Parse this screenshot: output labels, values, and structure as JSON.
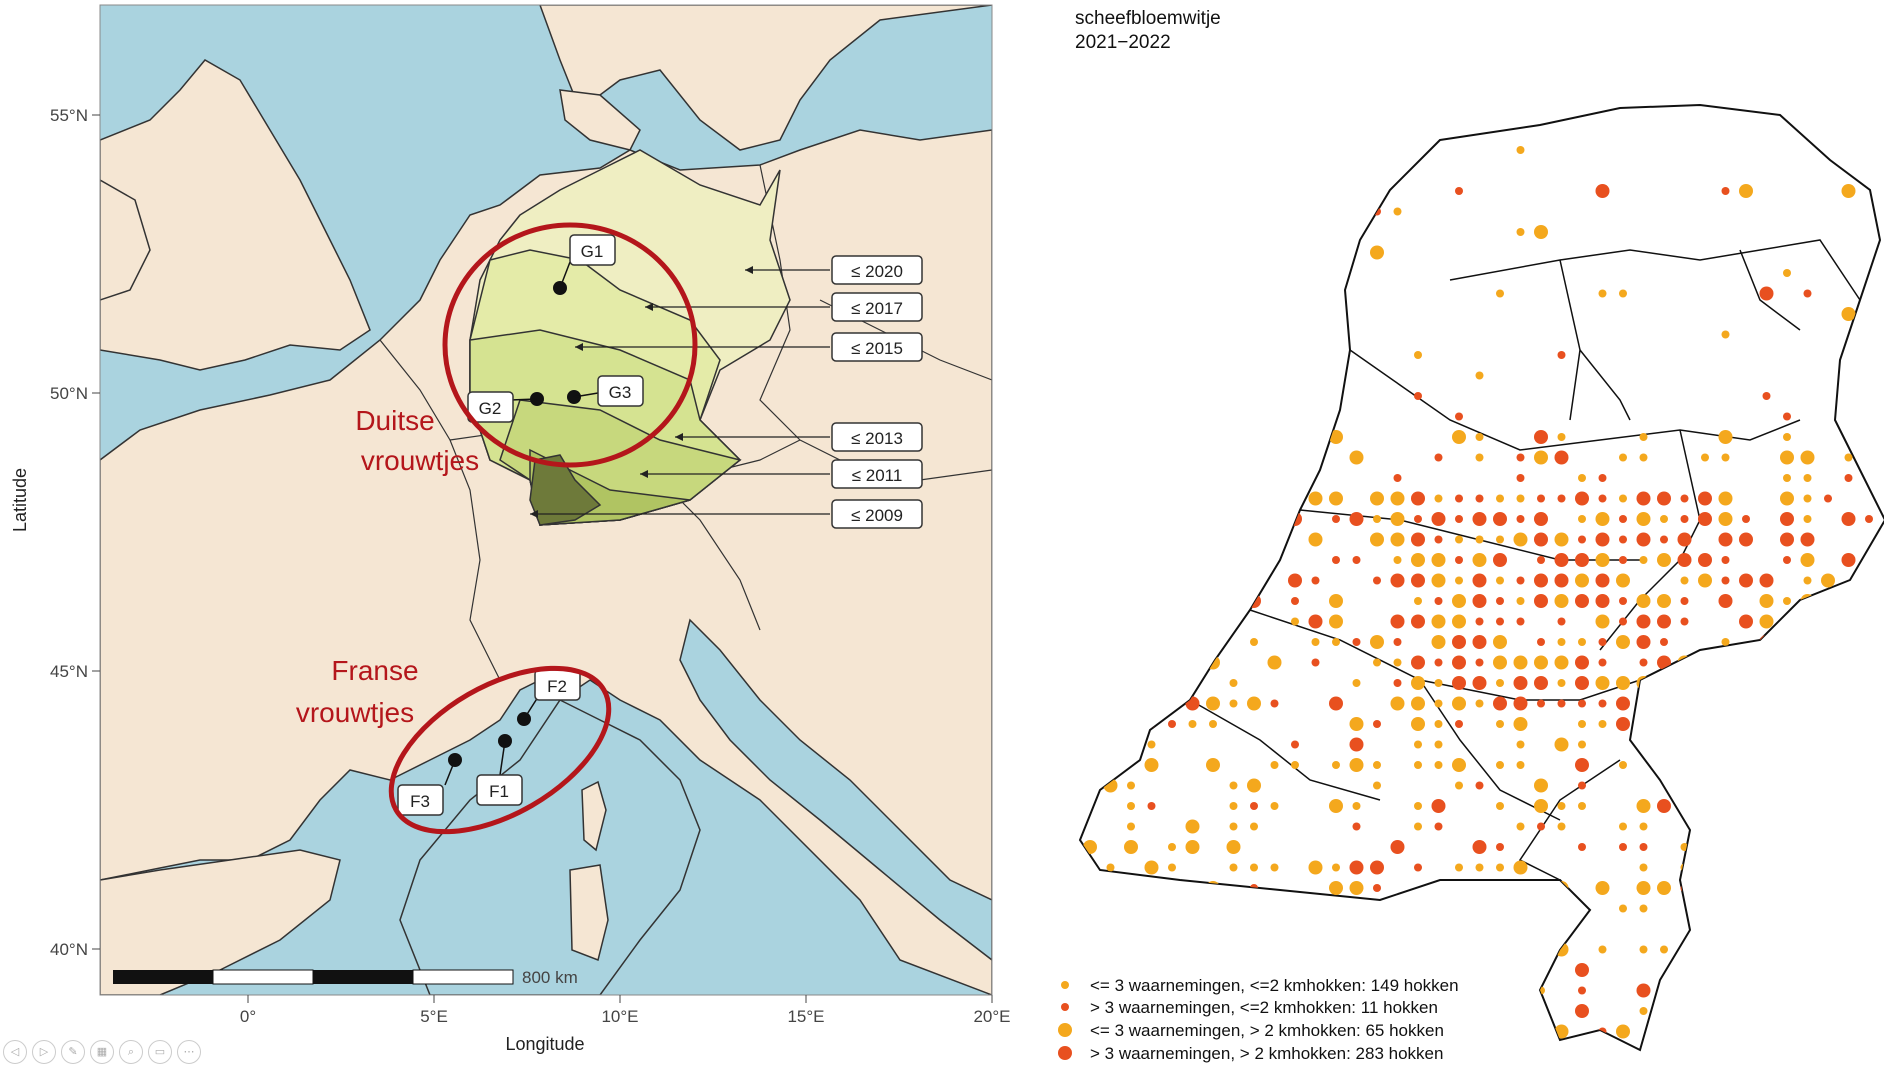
{
  "left_map": {
    "lat_ticks": [
      "55°N",
      "50°N",
      "45°N",
      "40°N"
    ],
    "lon_ticks": [
      "0°",
      "5°E",
      "10°E",
      "15°E",
      "20°E"
    ],
    "ylabel": "Latitude",
    "xlabel": "Longitude",
    "scalebar_label": "800 km",
    "year_labels": [
      "≤ 2020",
      "≤ 2017",
      "≤ 2015",
      "≤ 2013",
      "≤ 2011",
      "≤ 2009"
    ],
    "site_labels": [
      "G1",
      "G2",
      "G3",
      "F2",
      "F1",
      "F3"
    ],
    "annotations": {
      "german": [
        "Duitse",
        "vrouwtjes"
      ],
      "french": [
        "Franse",
        "vrouwtjes"
      ]
    },
    "colors": {
      "sea": "#aad3df",
      "land": "#f5e6d3",
      "zone_2020": "#efeec2",
      "zone_2017": "#e4eba8",
      "zone_2015": "#d5e391",
      "zone_2013": "#c7d87d",
      "zone_2011": "#b0c462",
      "zone_2009": "#6e7a3a",
      "annotation": "#b4161b"
    }
  },
  "right_map": {
    "title_line1": "scheefbloemwitje",
    "title_line2": "2021−2022",
    "legend": [
      {
        "label": "<= 3 waarnemingen, <=2 kmhokken: 149 hokken",
        "color": "#f4a81d",
        "size": "small"
      },
      {
        "label": "> 3 waarnemingen, <=2 kmhokken: 11 hokken",
        "color": "#e8501f",
        "size": "small"
      },
      {
        "label": "<= 3 waarnemingen, > 2 kmhokken: 65 hokken",
        "color": "#f4a81d",
        "size": "large"
      },
      {
        "label": "> 3 waarnemingen, > 2 kmhokken: 283 hokken",
        "color": "#e8501f",
        "size": "large"
      }
    ]
  },
  "toolbar": {
    "icons": [
      "prev-icon",
      "next-icon",
      "pen-icon",
      "slides-icon",
      "zoom-icon",
      "subtitle-icon",
      "more-icon"
    ]
  }
}
